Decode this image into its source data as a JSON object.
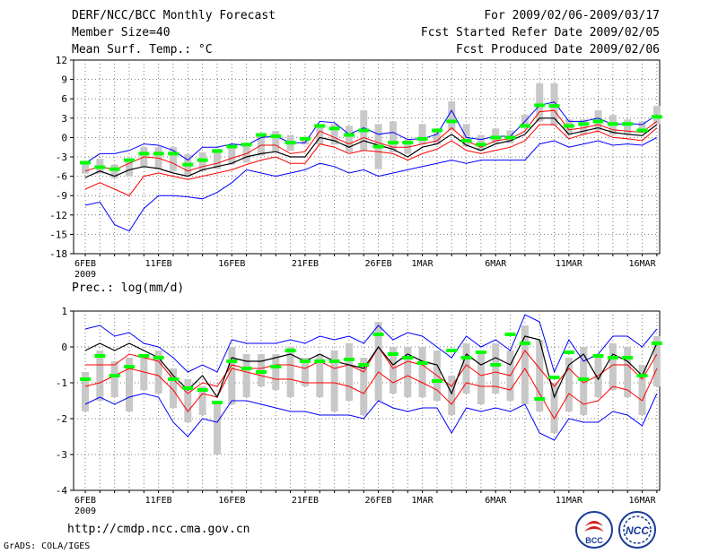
{
  "header": {
    "title": "DERF/NCC/BCC Monthly Forecast",
    "member_size": "Member Size=40",
    "variable": "Mean Surf. Temp.: °C",
    "period": "For 2009/02/06-2009/03/17",
    "started": "Fcst Started Refer Date 2009/02/05",
    "produced": "Fcst Produced Date 2009/02/06"
  },
  "footer": {
    "url": "http://cmdp.ncc.cma.gov.cn",
    "grads": "GrADS: COLA/IGES",
    "logo_bcc": "BCC",
    "logo_ncc": "NCC"
  },
  "colors": {
    "box": "#c8c8c8",
    "median": "#00ff00",
    "mean": "#000000",
    "inner": "#ff0000",
    "outer": "#0000ff",
    "grid": "#777777"
  },
  "chart_data": [
    {
      "type": "line",
      "title": "Mean Surf. Temp.: °C",
      "ylabel": "",
      "ylim": [
        -18,
        12
      ],
      "yticks": [
        -18,
        -15,
        -12,
        -9,
        -6,
        -3,
        0,
        3,
        6,
        9,
        12
      ],
      "xtick_labels": [
        "6FEB",
        "11FEB",
        "16FEB",
        "21FEB",
        "26FEB",
        "1MAR",
        "6MAR",
        "11MAR",
        "16MAR"
      ],
      "xtick_days": [
        0,
        5,
        10,
        15,
        20,
        23,
        28,
        33,
        38
      ],
      "year_label": "2009",
      "x_days": [
        0,
        1,
        2,
        3,
        4,
        5,
        6,
        7,
        8,
        9,
        10,
        11,
        12,
        13,
        14,
        15,
        16,
        17,
        18,
        19,
        20,
        21,
        22,
        23,
        24,
        25,
        26,
        27,
        28,
        29,
        30,
        31,
        32,
        33,
        34,
        35,
        36,
        37,
        38,
        39
      ],
      "series": [
        {
          "name": "outer_upper",
          "values": [
            -4,
            -2.5,
            -2.5,
            -2,
            -1,
            -1.2,
            -2,
            -3.5,
            -1.5,
            -1.5,
            -1,
            -1.2,
            0,
            0.2,
            -0.8,
            -0.8,
            2.5,
            2.3,
            0.5,
            1.5,
            0.5,
            0.8,
            -0.3,
            -0.2,
            0.5,
            4.2,
            0,
            -0.3,
            0.2,
            0.2,
            2.5,
            5,
            5.5,
            2.5,
            2.5,
            3,
            2,
            2.2,
            2,
            3.5
          ]
        },
        {
          "name": "inner_upper",
          "values": [
            -5.2,
            -4.5,
            -5,
            -4,
            -3,
            -3.2,
            -4,
            -5.2,
            -4.5,
            -4,
            -3.2,
            -2.5,
            -1.2,
            -1.2,
            -2.5,
            -2.2,
            1,
            0,
            -1,
            0,
            -0.8,
            -1.5,
            -1.5,
            -1,
            -0.5,
            1.5,
            -0.5,
            -1.5,
            -0.5,
            -0.2,
            1,
            4,
            4.2,
            1.2,
            1.5,
            2,
            1.2,
            1,
            0.8,
            2.5
          ]
        },
        {
          "name": "mean",
          "values": [
            -6.2,
            -5.2,
            -6,
            -5,
            -4.5,
            -4.8,
            -5.5,
            -6,
            -5,
            -4.5,
            -4,
            -3,
            -2.5,
            -2.2,
            -3,
            -3,
            0,
            -0.5,
            -1.5,
            -0.5,
            -1.2,
            -1.8,
            -3,
            -1.5,
            -1,
            0.5,
            -1.2,
            -2,
            -1,
            -0.5,
            0.5,
            3,
            3,
            0.5,
            1,
            1.5,
            0.8,
            0.5,
            0.3,
            2
          ]
        },
        {
          "name": "inner_lower",
          "values": [
            -8,
            -7,
            -8,
            -9,
            -6,
            -5.5,
            -6,
            -6.5,
            -6,
            -5.5,
            -5,
            -4.2,
            -3.5,
            -3,
            -4,
            -4,
            -1,
            -1.5,
            -2.5,
            -2,
            -2.2,
            -2.5,
            -3.5,
            -2.5,
            -1.8,
            -0.5,
            -2,
            -2.5,
            -2,
            -1.5,
            -0.5,
            2,
            2,
            -0.2,
            0.5,
            1,
            0,
            -0.2,
            -0.5,
            1.5
          ]
        },
        {
          "name": "outer_lower",
          "values": [
            -10.5,
            -10,
            -13.5,
            -14.5,
            -11,
            -9,
            -9,
            -9.2,
            -9.5,
            -8.5,
            -7,
            -5,
            -5.5,
            -6,
            -5.5,
            -5,
            -4,
            -4.5,
            -5.5,
            -5,
            -6,
            -5.5,
            -5,
            -4.5,
            -4,
            -3.5,
            -4,
            -3.5,
            -3.5,
            -3.5,
            -3.5,
            -1,
            -0.5,
            -1.5,
            -1,
            -0.5,
            -1.2,
            -1,
            -1.2,
            0
          ]
        },
        {
          "name": "box_upper",
          "values": [
            -3.8,
            -3.3,
            -4.2,
            -3.5,
            -1.5,
            -1.5,
            -1.5,
            -2.6,
            -2.3,
            -1.7,
            -1.3,
            -0.9,
            0.4,
            1,
            0.4,
            0.1,
            2.1,
            2.1,
            1.8,
            4.2,
            2.1,
            2.5,
            -0.3,
            2.1,
            1.4,
            5.6,
            2.1,
            0.4,
            1.4,
            1.1,
            3.5,
            8.4,
            8.4,
            2.8,
            2.8,
            4.2,
            3.5,
            2.8,
            2.5,
            4.9
          ]
        },
        {
          "name": "box_lower",
          "values": [
            -5.6,
            -5.6,
            -6.3,
            -6,
            -4.5,
            -4.9,
            -5.2,
            -6,
            -5.2,
            -4.9,
            -4.2,
            -3.9,
            -2.8,
            -2.3,
            -2.1,
            -1.1,
            -1.1,
            -1.1,
            -2.3,
            -2.1,
            -4.9,
            -2.3,
            -2.5,
            -1.1,
            -1.1,
            1.1,
            -1.4,
            -2.1,
            -0.9,
            -0.9,
            1.5,
            2.5,
            1.8,
            0.4,
            0.4,
            1.1,
            0.4,
            0.4,
            0.7,
            2.1
          ]
        },
        {
          "name": "median",
          "values": [
            -3.9,
            -4.6,
            -4.9,
            -3.5,
            -2.5,
            -2.5,
            -2.5,
            -4.2,
            -3.5,
            -2.1,
            -1.4,
            -1.1,
            0.4,
            0.2,
            -0.8,
            -0.2,
            1.8,
            1.4,
            0.4,
            1.1,
            -1.4,
            -0.8,
            -0.8,
            -0.2,
            1.1,
            2.5,
            -0.5,
            -1.1,
            0,
            0,
            1.8,
            5,
            4.9,
            1.8,
            2.1,
            2.5,
            2.1,
            2.1,
            1.1,
            3.2
          ]
        }
      ]
    },
    {
      "type": "line",
      "title": "Prec.: log(mm/d)",
      "ylabel": "",
      "ylim": [
        -4,
        1
      ],
      "yticks": [
        -4,
        -3,
        -2,
        -1,
        0,
        1
      ],
      "xtick_labels": [
        "6FEB",
        "11FEB",
        "16FEB",
        "21FEB",
        "26FEB",
        "1MAR",
        "6MAR",
        "11MAR",
        "16MAR"
      ],
      "xtick_days": [
        0,
        5,
        10,
        15,
        20,
        23,
        28,
        33,
        38
      ],
      "year_label": "2009",
      "x_days": [
        0,
        1,
        2,
        3,
        4,
        5,
        6,
        7,
        8,
        9,
        10,
        11,
        12,
        13,
        14,
        15,
        16,
        17,
        18,
        19,
        20,
        21,
        22,
        23,
        24,
        25,
        26,
        27,
        28,
        29,
        30,
        31,
        32,
        33,
        34,
        35,
        36,
        37,
        38,
        39
      ],
      "series": [
        {
          "name": "outer_upper",
          "values": [
            0.5,
            0.6,
            0.3,
            0.4,
            0.1,
            0,
            -0.3,
            -0.7,
            -0.5,
            -0.7,
            0.2,
            0.1,
            0.1,
            0.1,
            0.2,
            0.1,
            0.3,
            0.2,
            0.3,
            0.1,
            0.6,
            0.2,
            0.4,
            0.3,
            0,
            -0.3,
            0.3,
            0,
            0.2,
            -0.1,
            0.9,
            0.7,
            -0.7,
            0.2,
            -0.4,
            -0.2,
            0.3,
            0.3,
            0,
            0.5
          ]
        },
        {
          "name": "inner_upper",
          "values": [
            -0.5,
            -0.5,
            -0.5,
            -0.2,
            -0.3,
            -0.4,
            -0.9,
            -1.3,
            -1,
            -1.1,
            -0.5,
            -0.6,
            -0.6,
            -0.5,
            -0.5,
            -0.6,
            -0.4,
            -0.6,
            -0.5,
            -0.7,
            0,
            -0.6,
            -0.4,
            -0.5,
            -0.8,
            -1.1,
            -0.5,
            -0.8,
            -0.7,
            -0.8,
            -0.1,
            -0.6,
            -1.1,
            -0.6,
            -1,
            -0.8,
            -0.5,
            -0.5,
            -0.9,
            -0.2
          ]
        },
        {
          "name": "mean",
          "values": [
            -0.1,
            0.1,
            -0.1,
            0.1,
            -0.1,
            -0.3,
            -0.8,
            -1.2,
            -0.8,
            -1.4,
            -0.3,
            -0.4,
            -0.4,
            -0.3,
            -0.2,
            -0.4,
            -0.2,
            -0.4,
            -0.5,
            -0.6,
            0,
            -0.5,
            -0.2,
            -0.4,
            -0.5,
            -1.3,
            -0.2,
            -0.5,
            -0.3,
            -0.5,
            0.3,
            0.2,
            -1.4,
            -0.5,
            -0.2,
            -0.9,
            -0.2,
            -0.4,
            -0.8,
            0.1
          ]
        },
        {
          "name": "inner_lower",
          "values": [
            -1.1,
            -1,
            -0.8,
            -0.6,
            -0.7,
            -0.8,
            -1.2,
            -1.8,
            -1.3,
            -1.4,
            -0.6,
            -0.7,
            -0.8,
            -0.9,
            -0.9,
            -1,
            -1,
            -1,
            -1.1,
            -1.3,
            -0.7,
            -1,
            -0.8,
            -1,
            -1.2,
            -1.6,
            -1,
            -1.1,
            -1.1,
            -1.2,
            -0.6,
            -1.3,
            -2,
            -1.3,
            -1.6,
            -1.5,
            -1.1,
            -1.2,
            -1.5,
            -0.6
          ]
        },
        {
          "name": "outer_lower",
          "values": [
            -1.6,
            -1.4,
            -1.6,
            -1.4,
            -1.3,
            -1.4,
            -2.1,
            -2.5,
            -2,
            -2.1,
            -1.5,
            -1.5,
            -1.6,
            -1.7,
            -1.8,
            -1.8,
            -1.9,
            -1.9,
            -1.9,
            -2,
            -1.5,
            -1.7,
            -1.8,
            -1.7,
            -1.7,
            -2.4,
            -1.7,
            -1.8,
            -1.7,
            -1.8,
            -1.6,
            -2.4,
            -2.6,
            -2,
            -2.1,
            -2.1,
            -1.8,
            -1.9,
            -2.2,
            -1.3
          ]
        },
        {
          "name": "box_upper",
          "values": [
            -0.7,
            -0.1,
            -0.4,
            -0.3,
            -0.2,
            -0.1,
            -0.6,
            -0.9,
            -1.1,
            -1.5,
            0,
            -0.2,
            -0.2,
            -0.2,
            0,
            -0.3,
            -0.2,
            -0.1,
            0.1,
            -0.3,
            0.7,
            0,
            0,
            0,
            -0.1,
            -0.8,
            0.1,
            -0.2,
            0.1,
            -0.1,
            0.6,
            0.2,
            -1,
            -0.3,
            0,
            -0.2,
            0.1,
            0,
            -0.5,
            0.3
          ]
        },
        {
          "name": "box_lower",
          "values": [
            -1.8,
            -1.5,
            -1.4,
            -1.8,
            -1.2,
            -1.3,
            -1.7,
            -2.1,
            -1.9,
            -3,
            -1.6,
            -1.4,
            -1.1,
            -1.2,
            -1.4,
            -1.1,
            -1.4,
            -1.8,
            -1.5,
            -1.9,
            -1.5,
            -1.3,
            -1.4,
            -1.4,
            -1.5,
            -1.9,
            -1.3,
            -1.6,
            -1.3,
            -1.5,
            -1.6,
            -1.8,
            -2.4,
            -1.8,
            -1.9,
            -1.4,
            -1.2,
            -1.4,
            -1.9,
            -1.1
          ]
        },
        {
          "name": "median",
          "values": [
            -0.9,
            -0.25,
            -0.8,
            -0.55,
            -0.25,
            -0.3,
            -0.9,
            -1.15,
            -1.2,
            -1.55,
            -0.4,
            -0.6,
            -0.7,
            -0.55,
            -0.1,
            -0.4,
            -0.4,
            -0.4,
            -0.35,
            -0.5,
            0.35,
            -0.2,
            -0.3,
            -0.45,
            -0.95,
            -0.1,
            -0.3,
            -0.15,
            -0.5,
            0.35,
            0.1,
            -1.45,
            -0.85,
            -0.15,
            -0.9,
            -0.25,
            -0.3,
            -0.3,
            -0.8,
            0.1
          ]
        }
      ]
    }
  ]
}
